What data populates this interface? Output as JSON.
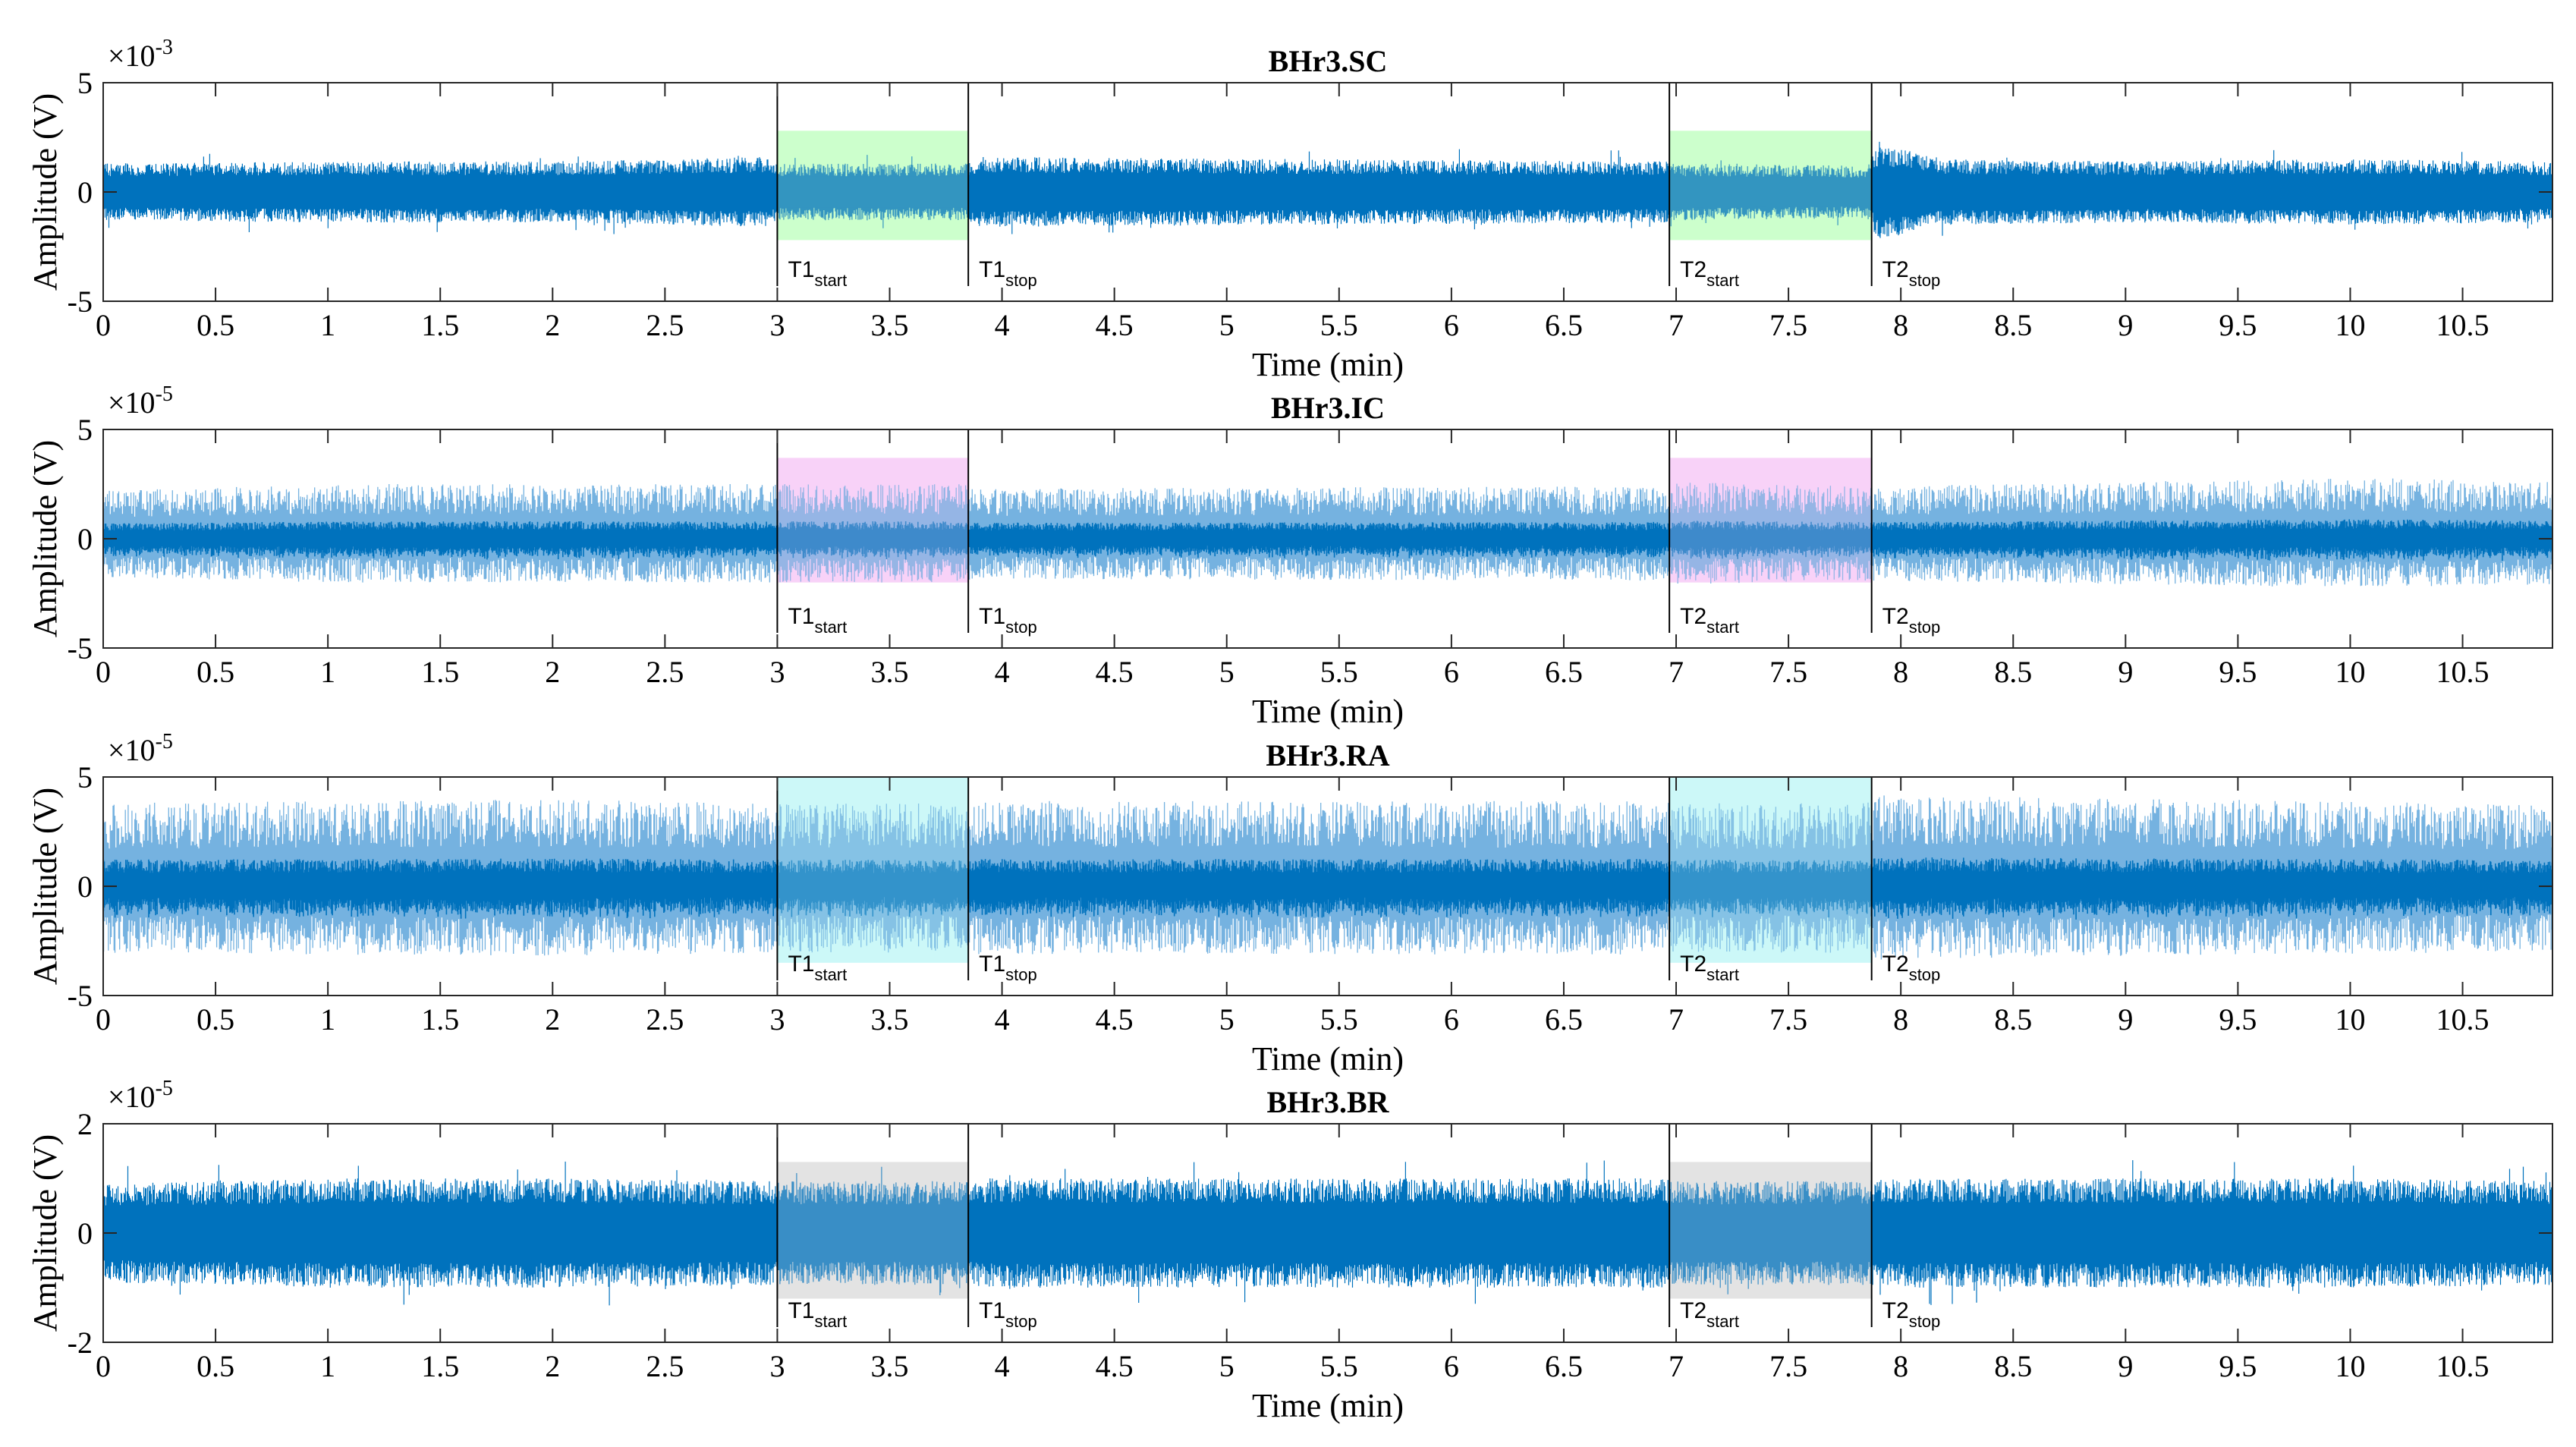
{
  "chart_data": [
    {
      "type": "line",
      "title": "BHr3.SC",
      "xlabel": "Time (min)",
      "ylabel": "Amplitude (V)",
      "exponent_label": "×10",
      "exponent": "-3",
      "xlim": [
        0,
        10.9
      ],
      "ylim": [
        -5,
        5
      ],
      "xticks": [
        "0",
        "0.5",
        "1",
        "1.5",
        "2",
        "2.5",
        "3",
        "3.5",
        "4",
        "4.5",
        "5",
        "5.5",
        "6",
        "6.5",
        "7",
        "7.5",
        "8",
        "8.5",
        "9",
        "9.5",
        "10",
        "10.5"
      ],
      "yticks": [
        "-5",
        "0",
        "5"
      ],
      "grid": false,
      "style": "dense",
      "signal_color": "#0072BD",
      "highlight_color": "#CCFFCC",
      "envelope": {
        "x": [
          0,
          1,
          2,
          2.95,
          3.0,
          3.85,
          3.9,
          6.95,
          7.0,
          7.85,
          7.9,
          8.2,
          9,
          10,
          10.9
        ],
        "amplitude": [
          1.3,
          1.4,
          1.4,
          1.6,
          1.3,
          1.3,
          1.6,
          1.4,
          1.3,
          1.2,
          2.2,
          1.5,
          1.4,
          1.5,
          1.4
        ]
      },
      "regions": [
        {
          "start": 3.0,
          "stop": 3.85,
          "ymin": -2.2,
          "ymax": 2.8
        },
        {
          "start": 6.97,
          "stop": 7.87,
          "ymin": -2.2,
          "ymax": 2.8
        }
      ],
      "markers": [
        {
          "x": 3.0,
          "label": "T1",
          "sub": "start"
        },
        {
          "x": 3.85,
          "label": "T1",
          "sub": "stop"
        },
        {
          "x": 6.97,
          "label": "T2",
          "sub": "start"
        },
        {
          "x": 7.87,
          "label": "T2",
          "sub": "stop"
        }
      ]
    },
    {
      "type": "line",
      "title": "BHr3.IC",
      "xlabel": "Time (min)",
      "ylabel": "Amplitude (V)",
      "exponent_label": "×10",
      "exponent": "-5",
      "xlim": [
        0,
        10.9
      ],
      "ylim": [
        -5,
        5
      ],
      "xticks": [
        "0",
        "0.5",
        "1",
        "1.5",
        "2",
        "2.5",
        "3",
        "3.5",
        "4",
        "4.5",
        "5",
        "5.5",
        "6",
        "6.5",
        "7",
        "7.5",
        "8",
        "8.5",
        "9",
        "9.5",
        "10",
        "10.5"
      ],
      "yticks": [
        "-5",
        "0",
        "5"
      ],
      "grid": false,
      "style": "spiky",
      "signal_color": "#0072BD",
      "spike_color": "#5DA5DA",
      "highlight_color": "#F8D2F8",
      "envelope": {
        "x": [
          0,
          1,
          2,
          3.0,
          3.85,
          3.9,
          6.95,
          7.0,
          7.85,
          7.9,
          9,
          10,
          10.9
        ],
        "amplitude": [
          2.2,
          2.5,
          2.5,
          2.5,
          2.5,
          2.3,
          2.4,
          2.6,
          2.4,
          2.4,
          2.6,
          2.8,
          2.6
        ]
      },
      "regions": [
        {
          "start": 3.0,
          "stop": 3.85,
          "ymin": -2.0,
          "ymax": 3.7
        },
        {
          "start": 6.97,
          "stop": 7.87,
          "ymin": -2.0,
          "ymax": 3.7
        }
      ],
      "markers": [
        {
          "x": 3.0,
          "label": "T1",
          "sub": "start"
        },
        {
          "x": 3.85,
          "label": "T1",
          "sub": "stop"
        },
        {
          "x": 6.97,
          "label": "T2",
          "sub": "start"
        },
        {
          "x": 7.87,
          "label": "T2",
          "sub": "stop"
        }
      ]
    },
    {
      "type": "line",
      "title": "BHr3.RA",
      "xlabel": "Time (min)",
      "ylabel": "Amplitude (V)",
      "exponent_label": "×10",
      "exponent": "-5",
      "xlim": [
        0,
        10.9
      ],
      "ylim": [
        -5,
        5
      ],
      "xticks": [
        "0",
        "0.5",
        "1",
        "1.5",
        "2",
        "2.5",
        "3",
        "3.5",
        "4",
        "4.5",
        "5",
        "5.5",
        "6",
        "6.5",
        "7",
        "7.5",
        "8",
        "8.5",
        "9",
        "9.5",
        "10",
        "10.5"
      ],
      "yticks": [
        "-5",
        "0",
        "5"
      ],
      "grid": false,
      "style": "spiky",
      "signal_color": "#0072BD",
      "spike_color": "#5DA5DA",
      "highlight_color": "#CCF8F8",
      "envelope": {
        "x": [
          0,
          1,
          2,
          3.0,
          3.85,
          3.9,
          6.95,
          7.0,
          7.85,
          7.9,
          9,
          10,
          10.9
        ],
        "amplitude": [
          3.8,
          3.9,
          4.0,
          3.8,
          3.8,
          3.9,
          3.9,
          3.8,
          3.8,
          4.2,
          4.0,
          3.9,
          3.7
        ]
      },
      "regions": [
        {
          "start": 3.0,
          "stop": 3.85,
          "ymin": -3.5,
          "ymax": 5.0
        },
        {
          "start": 6.97,
          "stop": 7.87,
          "ymin": -3.5,
          "ymax": 5.0
        }
      ],
      "markers": [
        {
          "x": 3.0,
          "label": "T1",
          "sub": "start"
        },
        {
          "x": 3.85,
          "label": "T1",
          "sub": "stop"
        },
        {
          "x": 6.97,
          "label": "T2",
          "sub": "start"
        },
        {
          "x": 7.87,
          "label": "T2",
          "sub": "stop"
        }
      ]
    },
    {
      "type": "line",
      "title": "BHr3.BR",
      "xlabel": "Time (min)",
      "ylabel": "Amplitude (V)",
      "exponent_label": "×10",
      "exponent": "-5",
      "xlim": [
        0,
        10.9
      ],
      "ylim": [
        -2,
        2
      ],
      "xticks": [
        "0",
        "0.5",
        "1",
        "1.5",
        "2",
        "2.5",
        "3",
        "3.5",
        "4",
        "4.5",
        "5",
        "5.5",
        "6",
        "6.5",
        "7",
        "7.5",
        "8",
        "8.5",
        "9",
        "9.5",
        "10",
        "10.5"
      ],
      "yticks": [
        "-2",
        "0",
        "2"
      ],
      "grid": false,
      "style": "dense",
      "signal_color": "#0072BD",
      "highlight_color": "#E3E3E3",
      "envelope": {
        "x": [
          0,
          1,
          2,
          3.0,
          3.85,
          3.9,
          6.95,
          7.0,
          7.85,
          7.9,
          9,
          10,
          10.9
        ],
        "amplitude": [
          0.9,
          1.0,
          1.0,
          0.95,
          0.95,
          1.0,
          1.0,
          0.95,
          0.95,
          1.0,
          1.0,
          1.0,
          0.95
        ]
      },
      "regions": [
        {
          "start": 3.0,
          "stop": 3.85,
          "ymin": -1.2,
          "ymax": 1.3
        },
        {
          "start": 6.97,
          "stop": 7.87,
          "ymin": -1.2,
          "ymax": 1.3
        }
      ],
      "markers": [
        {
          "x": 3.0,
          "label": "T1",
          "sub": "start"
        },
        {
          "x": 3.85,
          "label": "T1",
          "sub": "stop"
        },
        {
          "x": 6.97,
          "label": "T2",
          "sub": "start"
        },
        {
          "x": 7.87,
          "label": "T2",
          "sub": "stop"
        }
      ]
    }
  ]
}
